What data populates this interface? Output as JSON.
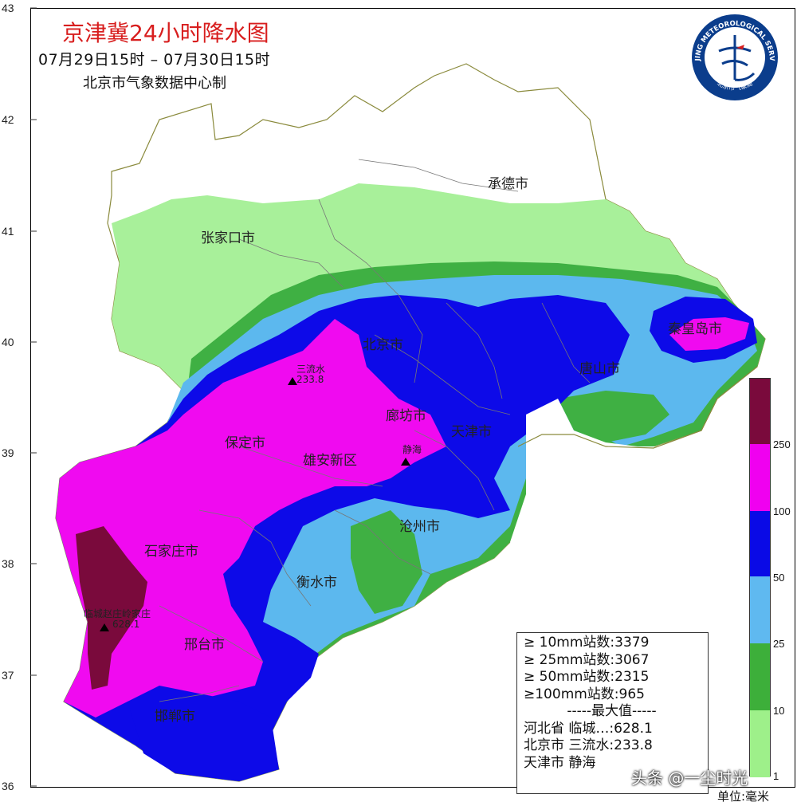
{
  "map": {
    "title": "京津冀24小时降水图",
    "period": "07月29日15时 – 07月30日15时",
    "maker": "北京市气象数据中心制",
    "latitudes": [
      "43",
      "42",
      "41",
      "40",
      "39",
      "38",
      "37",
      "36"
    ],
    "cities": [
      "承德市",
      "张家口市",
      "北京市",
      "秦皇岛市",
      "唐山市",
      "廊坊市",
      "天津市",
      "保定市",
      "雄安新区",
      "沧州市",
      "石家庄市",
      "衡水市",
      "邢台市",
      "邯郸市"
    ],
    "stations": [
      {
        "name": "三流水",
        "value": "233.8"
      },
      {
        "name": "静海",
        "value": ""
      },
      {
        "name": "临城赵庄岭家庄",
        "value": "628.1"
      }
    ]
  },
  "legend": {
    "ticks": [
      "250",
      "100",
      "50",
      "25",
      "10",
      "1"
    ],
    "unit": "单位:毫米",
    "colors": [
      "#e8fba8",
      "#9ef08a",
      "#3daf3a",
      "#5fb9f0",
      "#0a0ae6",
      "#f000f0",
      "#7a0a3c"
    ]
  },
  "stats": {
    "rows": [
      "≥ 10mm站数:3379",
      "≥ 25mm站数:3067",
      "≥ 50mm站数:2315",
      "≥100mm站数:965"
    ],
    "max_title": "-----最大值-----",
    "max_rows": [
      "河北省 临城…:628.1",
      "北京市 三流水:233.8",
      "天津市 静海"
    ]
  },
  "logo": {
    "text": "BEIJING METEOROLOGICAL SERVICE",
    "cn": "北京市气象局"
  },
  "watermark": "头条 @一尘时光"
}
